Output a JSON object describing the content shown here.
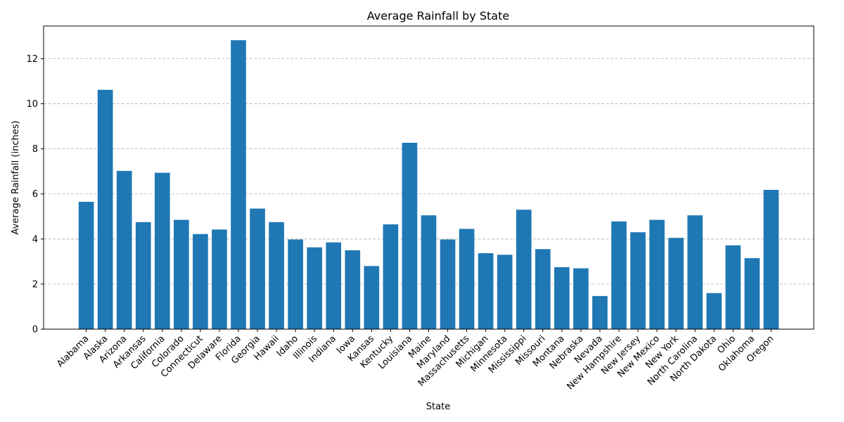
{
  "chart_data": {
    "type": "bar",
    "title": "Average Rainfall by State",
    "xlabel": "State",
    "ylabel": "Average Rainfall (inches)",
    "ylim": [
      0,
      13.45
    ],
    "yticks": [
      0,
      2,
      4,
      6,
      8,
      10,
      12
    ],
    "grid": "y",
    "bar_color": "#1f77b4",
    "categories": [
      "Alabama",
      "Alaska",
      "Arizona",
      "Arkansas",
      "California",
      "Colorado",
      "Connecticut",
      "Delaware",
      "Florida",
      "Georgia",
      "Hawaii",
      "Idaho",
      "Illinois",
      "Indiana",
      "Iowa",
      "Kansas",
      "Kentucky",
      "Louisiana",
      "Maine",
      "Maryland",
      "Massachusetts",
      "Michigan",
      "Minnesota",
      "Mississippi",
      "Missouri",
      "Montana",
      "Nebraska",
      "Nevada",
      "New Hampshire",
      "New Jersey",
      "New Mexico",
      "New York",
      "North Carolina",
      "North Dakota",
      "Ohio",
      "Oklahoma",
      "Oregon"
    ],
    "values": [
      5.65,
      10.62,
      7.02,
      4.75,
      6.94,
      4.85,
      4.22,
      4.42,
      12.82,
      5.35,
      4.75,
      3.98,
      3.63,
      3.85,
      3.5,
      2.8,
      4.65,
      8.27,
      5.05,
      3.98,
      4.45,
      3.37,
      3.3,
      5.3,
      3.55,
      2.75,
      2.7,
      1.47,
      4.78,
      4.3,
      4.85,
      4.05,
      5.05,
      1.6,
      3.72,
      3.15,
      6.18
    ]
  }
}
